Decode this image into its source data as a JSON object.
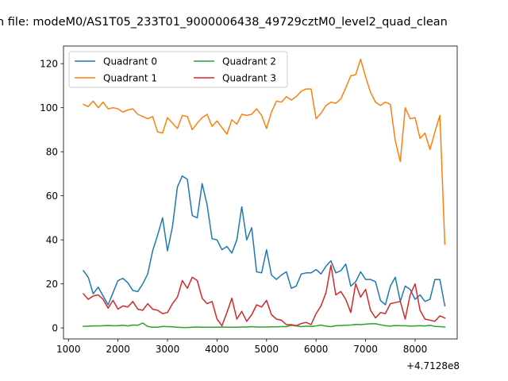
{
  "chart_data": {
    "type": "line",
    "title": "n file: modeM0/AS1T05_233T01_9000006438_49729cztM0_level2_quad_clean",
    "xlabel": "",
    "ylabel": "",
    "x_offset_label": "+4.7128e8",
    "xlim": [
      900,
      8850
    ],
    "ylim": [
      -5,
      128
    ],
    "xticks": [
      1000,
      2000,
      3000,
      4000,
      5000,
      6000,
      7000,
      8000
    ],
    "yticks": [
      0,
      20,
      40,
      60,
      80,
      100,
      120
    ],
    "legend_position": "top-left",
    "legend_columns": 2,
    "grid": false,
    "colors": {
      "Quadrant 0": "#1f77b4",
      "Quadrant 1": "#ff7f0e",
      "Quadrant 2": "#2ca02c",
      "Quadrant 3": "#d62728"
    },
    "series": [
      {
        "name": "Quadrant 0",
        "points": [
          [
            1300,
            26
          ],
          [
            1400,
            23
          ],
          [
            1500,
            15.5
          ],
          [
            1600,
            18.5
          ],
          [
            1700,
            14.5
          ],
          [
            1800,
            10.5
          ],
          [
            1900,
            16
          ],
          [
            2000,
            21.5
          ],
          [
            2100,
            22.5
          ],
          [
            2200,
            20.5
          ],
          [
            2300,
            17
          ],
          [
            2400,
            16.5
          ],
          [
            2500,
            20
          ],
          [
            2600,
            24.5
          ],
          [
            2700,
            35
          ],
          [
            2800,
            42
          ],
          [
            2900,
            50
          ],
          [
            3000,
            35
          ],
          [
            3100,
            46
          ],
          [
            3200,
            64
          ],
          [
            3300,
            69
          ],
          [
            3400,
            67.5
          ],
          [
            3500,
            51
          ],
          [
            3600,
            50
          ],
          [
            3700,
            65.5
          ],
          [
            3800,
            56
          ],
          [
            3900,
            40.5
          ],
          [
            4000,
            40
          ],
          [
            4100,
            35.5
          ],
          [
            4200,
            37
          ],
          [
            4300,
            34
          ],
          [
            4400,
            40
          ],
          [
            4500,
            55
          ],
          [
            4600,
            40
          ],
          [
            4700,
            45.5
          ],
          [
            4800,
            25.5
          ],
          [
            4900,
            25
          ],
          [
            5000,
            35.5
          ],
          [
            5100,
            24
          ],
          [
            5200,
            22
          ],
          [
            5300,
            24
          ],
          [
            5400,
            25.5
          ],
          [
            5500,
            18
          ],
          [
            5600,
            19
          ],
          [
            5700,
            24.5
          ],
          [
            5800,
            25
          ],
          [
            5900,
            25
          ],
          [
            6000,
            26.5
          ],
          [
            6100,
            24.5
          ],
          [
            6200,
            28
          ],
          [
            6300,
            30.5
          ],
          [
            6400,
            25
          ],
          [
            6500,
            26
          ],
          [
            6600,
            29
          ],
          [
            6700,
            19
          ],
          [
            6800,
            21
          ],
          [
            6900,
            25.5
          ],
          [
            7000,
            22
          ],
          [
            7100,
            22
          ],
          [
            7200,
            21
          ],
          [
            7300,
            12.5
          ],
          [
            7400,
            10.5
          ],
          [
            7500,
            19
          ],
          [
            7600,
            23
          ],
          [
            7700,
            12
          ],
          [
            7800,
            19
          ],
          [
            7900,
            17.5
          ],
          [
            8000,
            13
          ],
          [
            8100,
            15
          ],
          [
            8200,
            12
          ],
          [
            8300,
            13
          ],
          [
            8400,
            22
          ],
          [
            8500,
            22
          ],
          [
            8600,
            10
          ]
        ]
      },
      {
        "name": "Quadrant 1",
        "points": [
          [
            1300,
            101.5
          ],
          [
            1400,
            100.5
          ],
          [
            1500,
            103
          ],
          [
            1600,
            100
          ],
          [
            1700,
            102.5
          ],
          [
            1800,
            99.5
          ],
          [
            1900,
            100
          ],
          [
            2000,
            99.5
          ],
          [
            2100,
            98
          ],
          [
            2200,
            99
          ],
          [
            2300,
            99.5
          ],
          [
            2400,
            97
          ],
          [
            2500,
            96
          ],
          [
            2600,
            95
          ],
          [
            2700,
            96
          ],
          [
            2800,
            89
          ],
          [
            2900,
            88.5
          ],
          [
            3000,
            95.5
          ],
          [
            3100,
            93
          ],
          [
            3200,
            90.5
          ],
          [
            3300,
            96.5
          ],
          [
            3400,
            96
          ],
          [
            3500,
            90
          ],
          [
            3600,
            93
          ],
          [
            3700,
            95.5
          ],
          [
            3800,
            97
          ],
          [
            3900,
            91.5
          ],
          [
            4000,
            94
          ],
          [
            4100,
            91
          ],
          [
            4200,
            88
          ],
          [
            4300,
            94.5
          ],
          [
            4400,
            92.5
          ],
          [
            4500,
            97
          ],
          [
            4600,
            96.5
          ],
          [
            4700,
            97
          ],
          [
            4800,
            99.5
          ],
          [
            4900,
            96.5
          ],
          [
            5000,
            90.5
          ],
          [
            5100,
            98
          ],
          [
            5200,
            103
          ],
          [
            5300,
            102.5
          ],
          [
            5400,
            105
          ],
          [
            5500,
            103.5
          ],
          [
            5600,
            105
          ],
          [
            5700,
            107.5
          ],
          [
            5800,
            108.5
          ],
          [
            5900,
            108.5
          ],
          [
            6000,
            95
          ],
          [
            6100,
            97.5
          ],
          [
            6200,
            101
          ],
          [
            6300,
            102.5
          ],
          [
            6400,
            102
          ],
          [
            6500,
            104
          ],
          [
            6600,
            109
          ],
          [
            6700,
            114.5
          ],
          [
            6800,
            115
          ],
          [
            6900,
            122
          ],
          [
            7000,
            114
          ],
          [
            7100,
            107
          ],
          [
            7200,
            102.5
          ],
          [
            7300,
            101
          ],
          [
            7400,
            102.5
          ],
          [
            7500,
            101.5
          ],
          [
            7600,
            85
          ],
          [
            7700,
            75.5
          ],
          [
            7800,
            100
          ],
          [
            7900,
            95
          ],
          [
            8000,
            95.5
          ],
          [
            8100,
            86
          ],
          [
            8200,
            88.5
          ],
          [
            8300,
            81
          ],
          [
            8400,
            89
          ],
          [
            8500,
            96.5
          ],
          [
            8600,
            38
          ]
        ]
      },
      {
        "name": "Quadrant 2",
        "points": [
          [
            1300,
            0.7
          ],
          [
            1400,
            0.8
          ],
          [
            1500,
            0.9
          ],
          [
            1600,
            0.9
          ],
          [
            1700,
            1
          ],
          [
            1800,
            1.1
          ],
          [
            1900,
            1
          ],
          [
            2000,
            1
          ],
          [
            2100,
            1.2
          ],
          [
            2200,
            0.9
          ],
          [
            2300,
            1.3
          ],
          [
            2400,
            1.2
          ],
          [
            2500,
            2.2
          ],
          [
            2600,
            0.7
          ],
          [
            2700,
            0.3
          ],
          [
            2800,
            0.3
          ],
          [
            2900,
            0.7
          ],
          [
            3000,
            0.6
          ],
          [
            3100,
            0.5
          ],
          [
            3200,
            0.3
          ],
          [
            3300,
            0.2
          ],
          [
            3400,
            0.2
          ],
          [
            3500,
            0.3
          ],
          [
            3600,
            0.4
          ],
          [
            3700,
            0.3
          ],
          [
            3800,
            0.3
          ],
          [
            3900,
            0.3
          ],
          [
            4000,
            0.3
          ],
          [
            4100,
            0.4
          ],
          [
            4200,
            0.3
          ],
          [
            4300,
            0.3
          ],
          [
            4400,
            0.3
          ],
          [
            4500,
            0.4
          ],
          [
            4600,
            0.4
          ],
          [
            4700,
            0.6
          ],
          [
            4800,
            0.4
          ],
          [
            4900,
            0.4
          ],
          [
            5000,
            0.4
          ],
          [
            5100,
            0.5
          ],
          [
            5200,
            0.5
          ],
          [
            5300,
            0.6
          ],
          [
            5400,
            0.6
          ],
          [
            5500,
            1.2
          ],
          [
            5600,
            0.9
          ],
          [
            5700,
            0.6
          ],
          [
            5800,
            0.8
          ],
          [
            5900,
            0.7
          ],
          [
            6000,
            0.9
          ],
          [
            6100,
            1.3
          ],
          [
            6200,
            0.8
          ],
          [
            6300,
            0.6
          ],
          [
            6400,
            1
          ],
          [
            6500,
            1.1
          ],
          [
            6600,
            1.2
          ],
          [
            6700,
            1.3
          ],
          [
            6800,
            1.6
          ],
          [
            6900,
            1.5
          ],
          [
            7000,
            1.7
          ],
          [
            7100,
            1.9
          ],
          [
            7200,
            1.9
          ],
          [
            7300,
            1.4
          ],
          [
            7400,
            1
          ],
          [
            7500,
            0.8
          ],
          [
            7600,
            1.1
          ],
          [
            7700,
            1
          ],
          [
            7800,
            1
          ],
          [
            7900,
            0.8
          ],
          [
            8000,
            0.9
          ],
          [
            8100,
            1
          ],
          [
            8200,
            0.9
          ],
          [
            8300,
            1.2
          ],
          [
            8400,
            0.7
          ],
          [
            8500,
            0.6
          ],
          [
            8600,
            0.4
          ]
        ]
      },
      {
        "name": "Quadrant 3",
        "points": [
          [
            1300,
            15.5
          ],
          [
            1400,
            13
          ],
          [
            1500,
            14.5
          ],
          [
            1600,
            15
          ],
          [
            1700,
            13
          ],
          [
            1800,
            9
          ],
          [
            1900,
            12.5
          ],
          [
            2000,
            8.5
          ],
          [
            2100,
            10
          ],
          [
            2200,
            9.5
          ],
          [
            2300,
            12
          ],
          [
            2400,
            8.5
          ],
          [
            2500,
            8
          ],
          [
            2600,
            11
          ],
          [
            2700,
            8.5
          ],
          [
            2800,
            8
          ],
          [
            2900,
            6.5
          ],
          [
            3000,
            7
          ],
          [
            3100,
            11
          ],
          [
            3200,
            14
          ],
          [
            3300,
            21.5
          ],
          [
            3400,
            18
          ],
          [
            3500,
            23
          ],
          [
            3600,
            21.5
          ],
          [
            3700,
            13.5
          ],
          [
            3800,
            11
          ],
          [
            3900,
            12
          ],
          [
            4000,
            4
          ],
          [
            4100,
            1
          ],
          [
            4200,
            7
          ],
          [
            4300,
            13.5
          ],
          [
            4400,
            4
          ],
          [
            4500,
            7.5
          ],
          [
            4600,
            3
          ],
          [
            4700,
            6
          ],
          [
            4800,
            10.5
          ],
          [
            4900,
            9.5
          ],
          [
            5000,
            12.5
          ],
          [
            5100,
            6
          ],
          [
            5200,
            4
          ],
          [
            5300,
            3.5
          ],
          [
            5400,
            1.5
          ],
          [
            5500,
            1.5
          ],
          [
            5600,
            1
          ],
          [
            5700,
            2
          ],
          [
            5800,
            2.5
          ],
          [
            5900,
            1.5
          ],
          [
            6000,
            6.5
          ],
          [
            6100,
            10
          ],
          [
            6200,
            16
          ],
          [
            6300,
            28.5
          ],
          [
            6400,
            15
          ],
          [
            6500,
            16.5
          ],
          [
            6600,
            13
          ],
          [
            6700,
            7
          ],
          [
            6800,
            20
          ],
          [
            6900,
            14
          ],
          [
            7000,
            17.5
          ],
          [
            7100,
            8
          ],
          [
            7200,
            4.5
          ],
          [
            7300,
            7
          ],
          [
            7400,
            6.5
          ],
          [
            7500,
            11
          ],
          [
            7600,
            11.5
          ],
          [
            7700,
            12
          ],
          [
            7800,
            4
          ],
          [
            7900,
            15
          ],
          [
            8000,
            20
          ],
          [
            8100,
            8
          ],
          [
            8200,
            4
          ],
          [
            8300,
            3.5
          ],
          [
            8400,
            3
          ],
          [
            8500,
            5.5
          ],
          [
            8600,
            4.5
          ]
        ]
      }
    ]
  }
}
